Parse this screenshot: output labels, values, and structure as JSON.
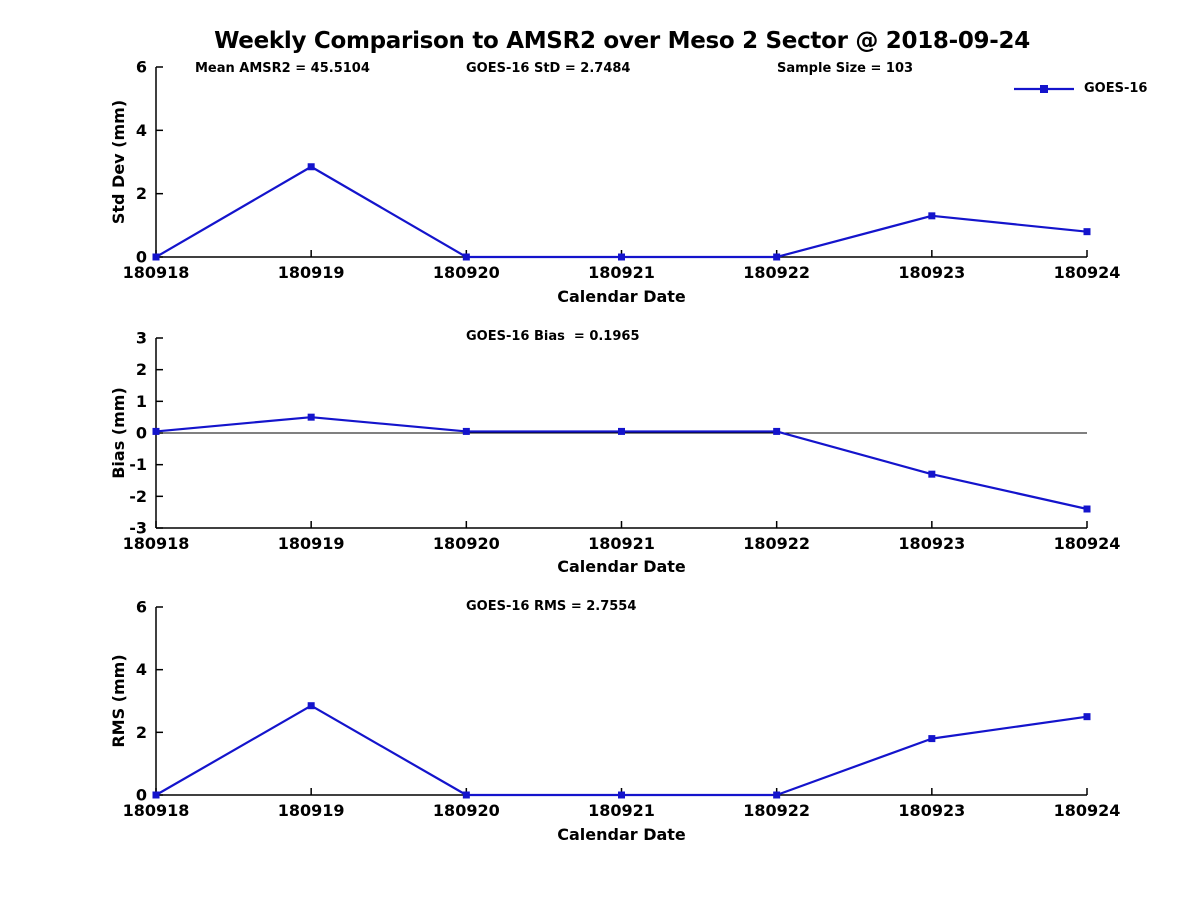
{
  "title": "Weekly Comparison to AMSR2 over Meso 2 Sector @ 2018-09-24",
  "legend": {
    "label": "GOES-16"
  },
  "colors": {
    "line": "#1414cc",
    "axis": "#000000",
    "text": "#000000"
  },
  "chart_data": [
    {
      "type": "line",
      "title": "Std Dev panel",
      "categories": [
        "180918",
        "180919",
        "180920",
        "180921",
        "180922",
        "180923",
        "180924"
      ],
      "series": [
        {
          "name": "GOES-16",
          "values": [
            0,
            2.85,
            0,
            0,
            0,
            1.3,
            0.8
          ]
        }
      ],
      "xlabel": "Calendar Date",
      "ylabel": "Std Dev (mm)",
      "ylim": [
        0,
        6
      ],
      "yticks": [
        0,
        2,
        4,
        6
      ],
      "grid": false,
      "marker": "square",
      "legend_position": "upper-right-outside",
      "annotations": [
        "Mean AMSR2 = 45.5104",
        "GOES-16 StD = 2.7484",
        "Sample Size = 103"
      ]
    },
    {
      "type": "line",
      "title": "Bias panel",
      "categories": [
        "180918",
        "180919",
        "180920",
        "180921",
        "180922",
        "180923",
        "180924"
      ],
      "series": [
        {
          "name": "GOES-16",
          "values": [
            0.05,
            0.5,
            0.05,
            0.05,
            0.05,
            -1.3,
            -2.4
          ]
        }
      ],
      "xlabel": "Calendar Date",
      "ylabel": "Bias (mm)",
      "ylim": [
        -3,
        3
      ],
      "yticks": [
        -3,
        -2,
        -1,
        0,
        1,
        2,
        3
      ],
      "zero_line": true,
      "grid": false,
      "marker": "square",
      "annotations": [
        "GOES-16 Bias  = 0.1965"
      ]
    },
    {
      "type": "line",
      "title": "RMS panel",
      "categories": [
        "180918",
        "180919",
        "180920",
        "180921",
        "180922",
        "180923",
        "180924"
      ],
      "series": [
        {
          "name": "GOES-16",
          "values": [
            0,
            2.85,
            0,
            0,
            0,
            1.8,
            2.5
          ]
        }
      ],
      "xlabel": "Calendar Date",
      "ylabel": "RMS (mm)",
      "ylim": [
        0,
        6
      ],
      "yticks": [
        0,
        2,
        4,
        6
      ],
      "grid": false,
      "marker": "square",
      "annotations": [
        "GOES-16 RMS = 2.7554"
      ]
    }
  ]
}
